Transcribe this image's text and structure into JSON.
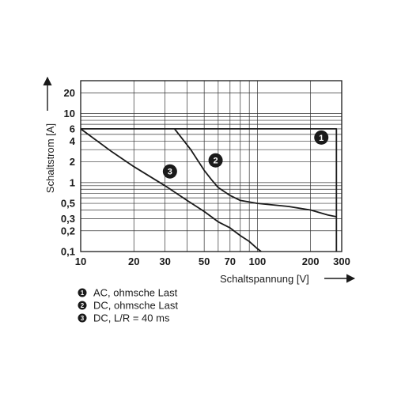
{
  "chart_data": {
    "type": "line",
    "title": "",
    "xlabel": "Schaltspannung [V]",
    "ylabel": "Schaltstrom [A]",
    "x_scale": "log",
    "y_scale": "log",
    "xlim": [
      10,
      300
    ],
    "ylim": [
      0.1,
      30
    ],
    "grid": true,
    "x_ticks": [
      10,
      20,
      30,
      50,
      70,
      100,
      200,
      300
    ],
    "x_tick_labels": [
      "10",
      "20",
      "30",
      "50",
      "70",
      "100",
      "200",
      "300"
    ],
    "y_ticks": [
      0.1,
      0.2,
      0.3,
      0.5,
      1,
      2,
      4,
      6,
      10,
      20
    ],
    "y_tick_labels": [
      "0,1",
      "0,2",
      "0,3",
      "0,5",
      "1",
      "2",
      "4",
      "6",
      "10",
      "20"
    ],
    "series": [
      {
        "name": "AC, ohmsche Last",
        "badge": "1",
        "x": [
          10,
          280,
          280
        ],
        "y": [
          6,
          6,
          0.1
        ]
      },
      {
        "name": "DC, ohmsche Last",
        "badge": "2",
        "x": [
          34,
          42,
          50,
          55,
          60,
          70,
          80,
          100,
          150,
          200,
          250,
          280
        ],
        "y": [
          6,
          3,
          1.5,
          1.1,
          0.85,
          0.65,
          0.55,
          0.5,
          0.45,
          0.4,
          0.34,
          0.32
        ]
      },
      {
        "name": "DC, L/R = 40 ms",
        "badge": "3",
        "x": [
          10,
          15,
          20,
          30,
          40,
          50,
          60,
          70,
          80,
          90,
          100,
          105
        ],
        "y": [
          6,
          2.8,
          1.7,
          0.9,
          0.55,
          0.38,
          0.27,
          0.22,
          0.17,
          0.14,
          0.11,
          0.1
        ]
      }
    ],
    "badge_positions": [
      {
        "badge": "1",
        "x": 230,
        "y": 4.5
      },
      {
        "badge": "2",
        "x": 58,
        "y": 2.1
      },
      {
        "badge": "3",
        "x": 32,
        "y": 1.45
      }
    ],
    "legend": {
      "placement": "bottom-left",
      "entries": [
        {
          "badge": "1",
          "label": "AC, ohmsche Last"
        },
        {
          "badge": "2",
          "label": "DC, ohmsche Last"
        },
        {
          "badge": "3",
          "label": "DC, L/R = 40 ms"
        }
      ]
    }
  }
}
